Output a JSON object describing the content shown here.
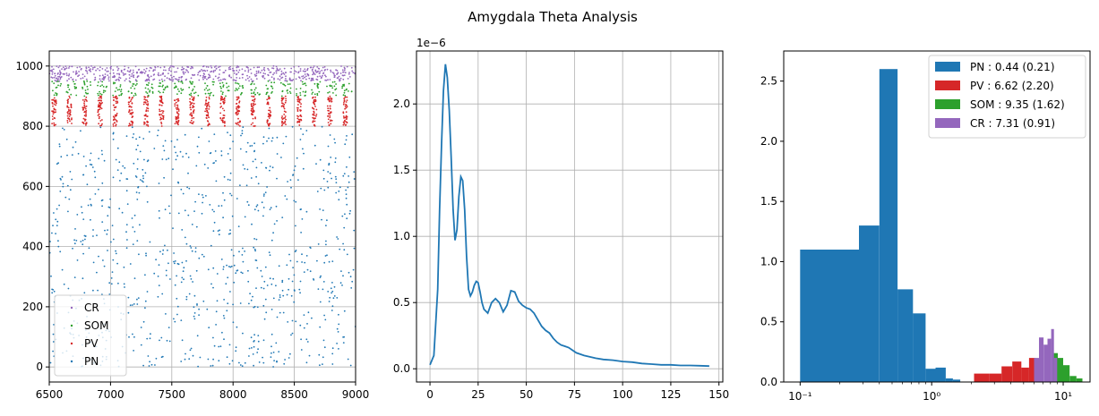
{
  "figure": {
    "suptitle": "Amygdala Theta Analysis"
  },
  "colors": {
    "PN": "#1f77b4",
    "PV": "#d62728",
    "SOM": "#2ca02c",
    "CR": "#9467bd",
    "grid": "#b0b0b0",
    "line": "#1f77b4"
  },
  "chart_data": [
    {
      "type": "scatter",
      "title": "",
      "xlabel": "",
      "ylabel": "",
      "xlim": [
        6500,
        9000
      ],
      "ylim": [
        -50,
        1050
      ],
      "xticks": [
        6500,
        7000,
        7500,
        8000,
        8500,
        9000
      ],
      "xtick_labels": [
        "6500",
        "7000",
        "7500",
        "8000",
        "8500",
        "9000"
      ],
      "yticks": [
        0,
        200,
        400,
        600,
        800,
        1000
      ],
      "ytick_labels": [
        "0",
        "200",
        "400",
        "600",
        "800",
        "1000"
      ],
      "grid": true,
      "legend": {
        "position": "lower-left",
        "entries": [
          "CR",
          "SOM",
          "PV",
          "PN"
        ]
      },
      "series": [
        {
          "name": "PN",
          "cell_range": [
            0,
            800
          ],
          "approx_spike_count": 900,
          "pattern": "sparse irregular spiking"
        },
        {
          "name": "PV",
          "cell_range": [
            800,
            900
          ],
          "pattern": "bursts at theta rhythm (~8 Hz)",
          "burst_times": [
            6540,
            6665,
            6790,
            6915,
            7040,
            7165,
            7290,
            7415,
            7540,
            7665,
            7790,
            7915,
            8040,
            8165,
            8290,
            8415,
            8540,
            8665,
            8790,
            8915
          ]
        },
        {
          "name": "SOM",
          "cell_range": [
            900,
            950
          ],
          "pattern": "spikes clustered near theta peaks"
        },
        {
          "name": "CR",
          "cell_range": [
            950,
            1000
          ],
          "pattern": "dense irregular spiking"
        }
      ]
    },
    {
      "type": "line",
      "title": "",
      "xlabel": "",
      "ylabel": "",
      "offset_text": "1e−6",
      "xlim": [
        -7,
        152
      ],
      "ylim": [
        -1e-07,
        2.4e-06
      ],
      "xticks": [
        0,
        25,
        50,
        75,
        100,
        125,
        150
      ],
      "xtick_labels": [
        "0",
        "25",
        "50",
        "75",
        "100",
        "125",
        "150"
      ],
      "yticks": [
        0.0,
        0.5,
        1.0,
        1.5,
        2.0
      ],
      "ytick_labels": [
        "0.0",
        "0.5",
        "1.0",
        "1.5",
        "2.0"
      ],
      "y_unit_scale": 1e-06,
      "grid": true,
      "x": [
        0,
        2,
        4,
        5,
        6,
        7,
        8,
        9,
        10,
        11,
        12,
        13,
        14,
        15,
        16,
        17,
        18,
        19,
        20,
        21,
        22,
        23,
        24,
        25,
        26,
        27,
        28,
        30,
        32,
        34,
        36,
        38,
        40,
        42,
        44,
        46,
        48,
        50,
        52,
        54,
        56,
        58,
        60,
        62,
        64,
        66,
        68,
        70,
        72,
        74,
        76,
        78,
        80,
        83,
        86,
        90,
        95,
        100,
        105,
        110,
        115,
        120,
        125,
        130,
        135,
        140,
        145
      ],
      "y": [
        0.03,
        0.1,
        0.6,
        1.2,
        1.7,
        2.1,
        2.3,
        2.2,
        1.95,
        1.6,
        1.2,
        0.97,
        1.05,
        1.3,
        1.45,
        1.42,
        1.2,
        0.85,
        0.6,
        0.55,
        0.58,
        0.63,
        0.66,
        0.65,
        0.58,
        0.5,
        0.45,
        0.42,
        0.5,
        0.53,
        0.5,
        0.43,
        0.48,
        0.59,
        0.58,
        0.51,
        0.48,
        0.46,
        0.45,
        0.42,
        0.37,
        0.32,
        0.29,
        0.27,
        0.23,
        0.2,
        0.18,
        0.17,
        0.16,
        0.14,
        0.12,
        0.11,
        0.1,
        0.09,
        0.08,
        0.07,
        0.065,
        0.055,
        0.05,
        0.04,
        0.035,
        0.03,
        0.03,
        0.025,
        0.025,
        0.023,
        0.02
      ]
    },
    {
      "type": "histogram",
      "title": "",
      "xlabel": "",
      "ylabel": "",
      "x_scale": "log",
      "xlim": [
        0.075,
        16
      ],
      "ylim": [
        0,
        2.75
      ],
      "xticks": [
        0.1,
        1,
        10
      ],
      "xtick_labels": [
        "10⁻¹",
        "10⁰",
        "10¹"
      ],
      "yticks": [
        0.0,
        0.5,
        1.0,
        1.5,
        2.0,
        2.5
      ],
      "ytick_labels": [
        "0.0",
        "0.5",
        "1.0",
        "1.5",
        "2.0",
        "2.5"
      ],
      "grid": false,
      "legend": {
        "position": "upper-right"
      },
      "series": [
        {
          "name": "PN",
          "label": "PN : 0.44 (0.21)",
          "bins": [
            [
              0.1,
              0.28,
              1.1
            ],
            [
              0.28,
              0.4,
              1.3
            ],
            [
              0.4,
              0.55,
              2.6
            ],
            [
              0.55,
              0.72,
              0.77
            ],
            [
              0.72,
              0.9,
              0.57
            ],
            [
              0.9,
              1.07,
              0.11
            ],
            [
              1.07,
              1.28,
              0.12
            ],
            [
              1.28,
              1.45,
              0.03
            ],
            [
              1.45,
              1.65,
              0.02
            ]
          ]
        },
        {
          "name": "PV",
          "label": "PV : 6.62 (2.20)",
          "bins": [
            [
              2.1,
              2.75,
              0.07
            ],
            [
              2.75,
              3.4,
              0.07
            ],
            [
              3.4,
              4.1,
              0.13
            ],
            [
              4.1,
              4.8,
              0.17
            ],
            [
              4.8,
              5.5,
              0.12
            ],
            [
              5.5,
              6.2,
              0.2
            ],
            [
              6.2,
              7.0,
              0.18
            ]
          ]
        },
        {
          "name": "SOM",
          "label": "SOM : 9.35 (1.62)",
          "bins": [
            [
              8.3,
              9.1,
              0.24
            ],
            [
              9.1,
              10.0,
              0.2
            ],
            [
              10.0,
              11.2,
              0.14
            ],
            [
              11.2,
              12.6,
              0.05
            ],
            [
              12.6,
              14.0,
              0.03
            ]
          ]
        },
        {
          "name": "CR",
          "label": "CR : 7.31 (0.91)",
          "bins": [
            [
              6.0,
              6.55,
              0.2
            ],
            [
              6.55,
              7.1,
              0.37
            ],
            [
              7.1,
              7.6,
              0.31
            ],
            [
              7.6,
              8.1,
              0.36
            ],
            [
              8.1,
              8.5,
              0.44
            ],
            [
              8.5,
              9.0,
              0.2
            ]
          ]
        }
      ]
    }
  ]
}
